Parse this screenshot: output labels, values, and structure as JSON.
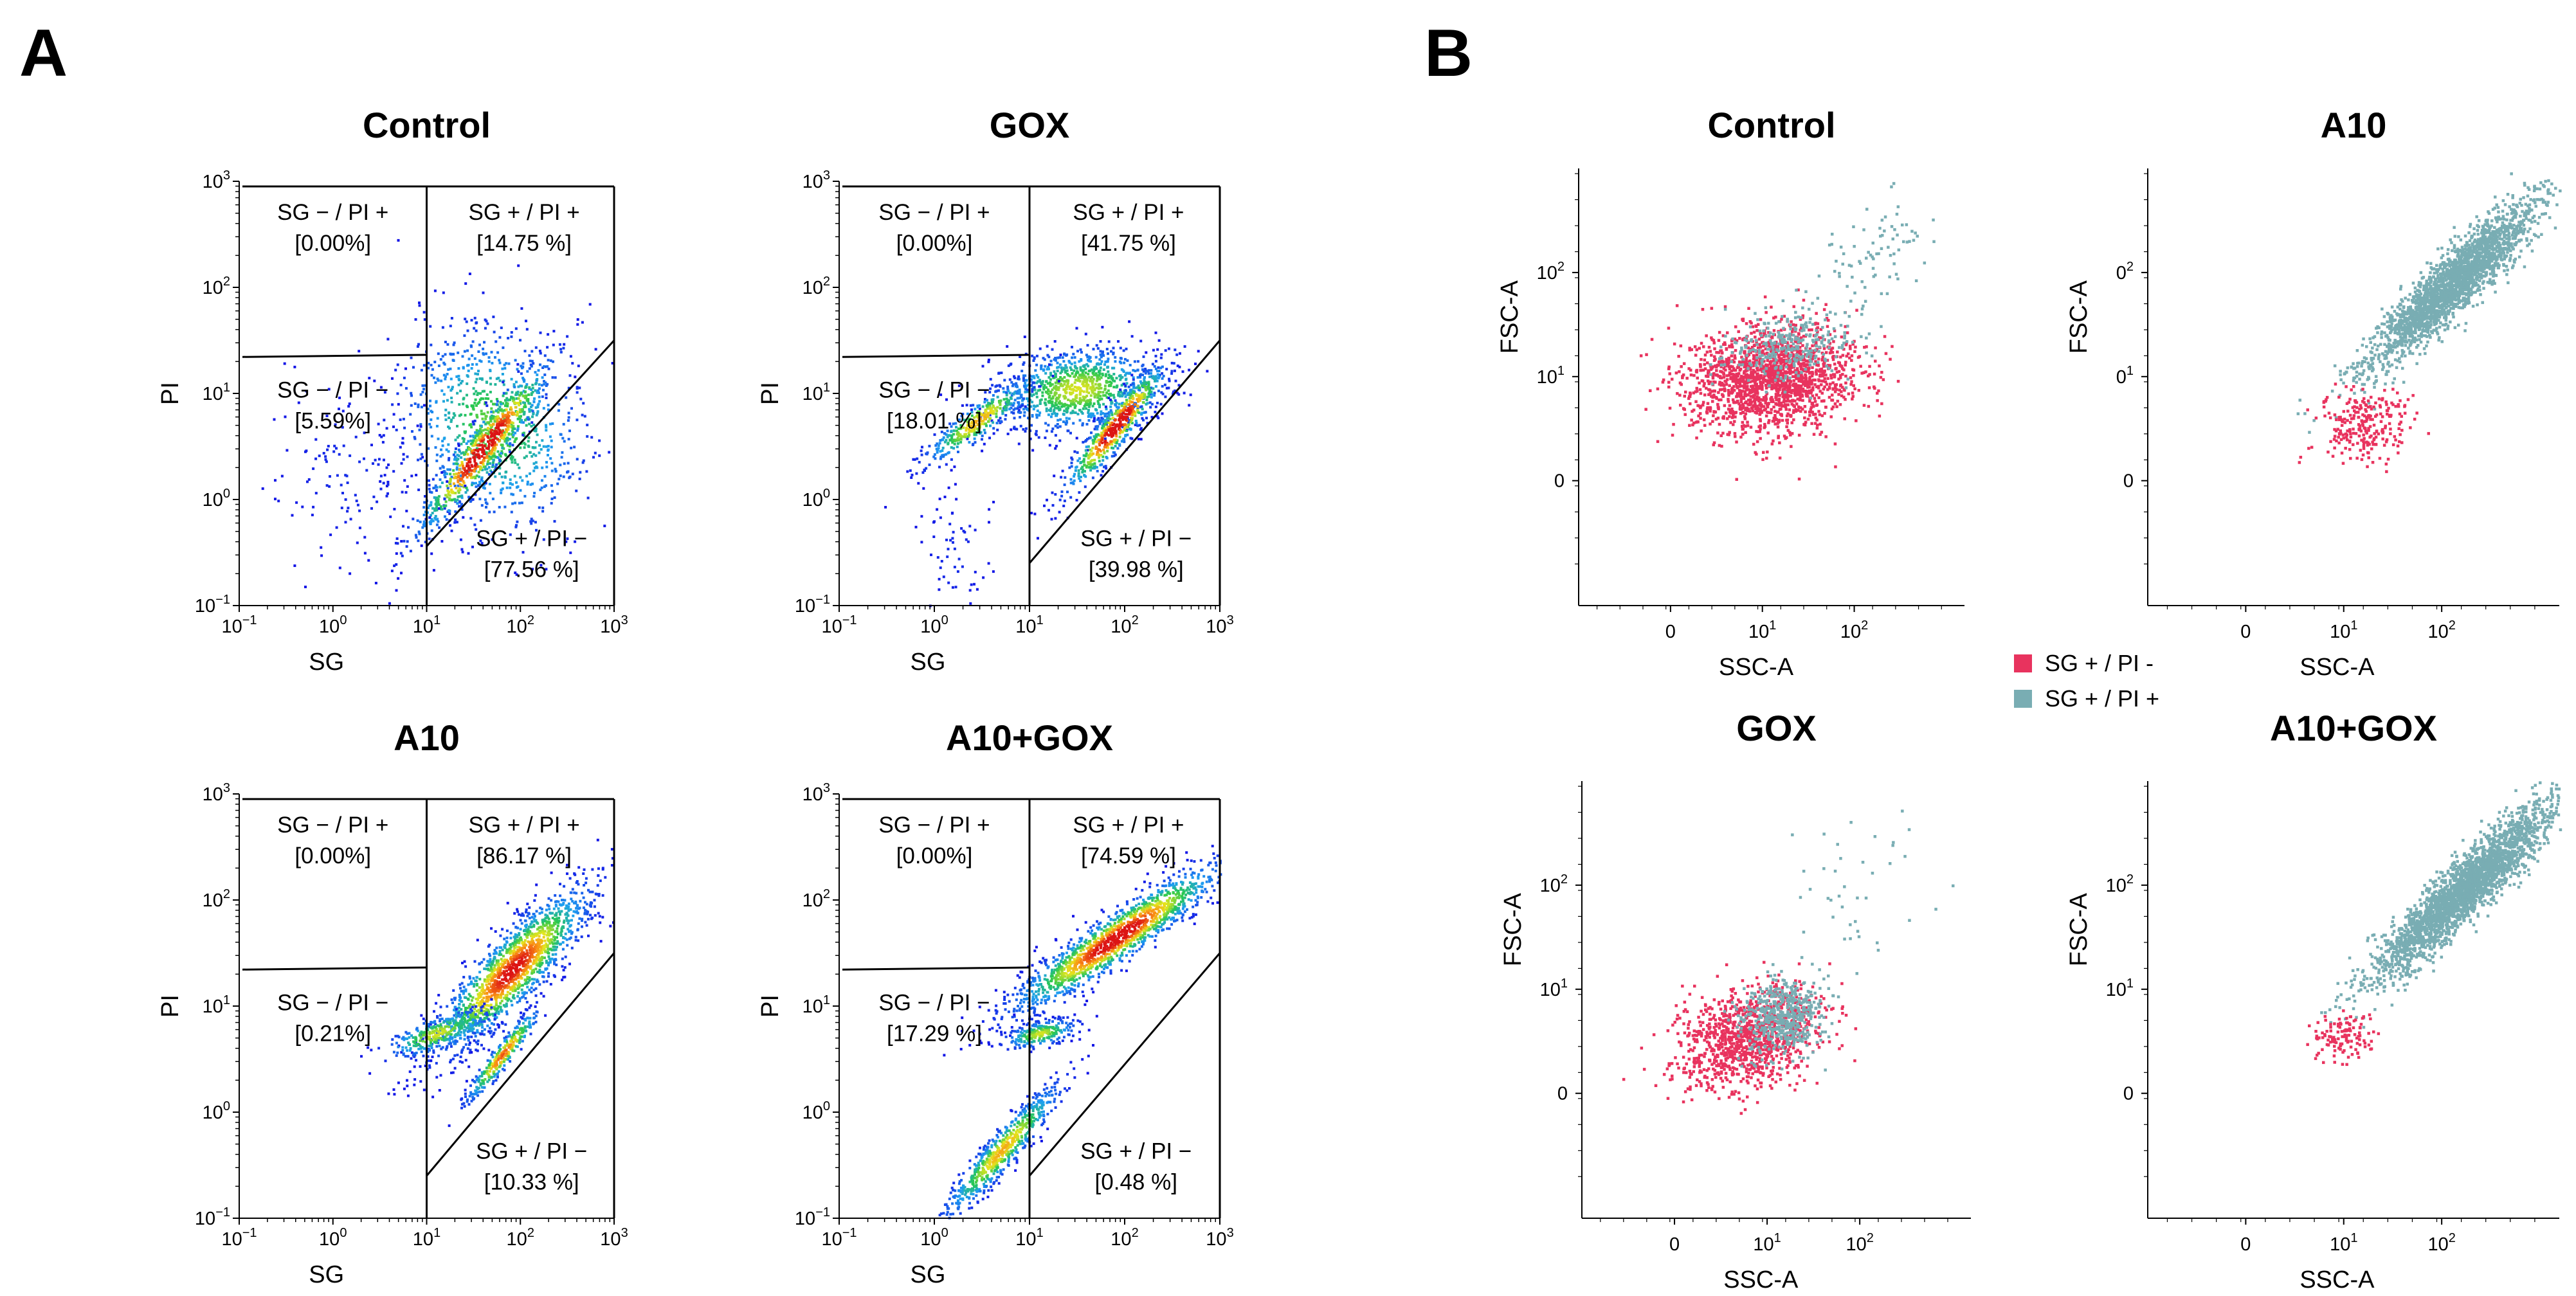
{
  "panels": {
    "A": "A",
    "B": "B"
  },
  "chart_data": [
    {
      "type": "scatter",
      "panel": "A",
      "title": "Control",
      "xlabel": "SG",
      "ylabel": "PI",
      "xticks": [
        "10−1",
        "100",
        "101",
        "102",
        "103"
      ],
      "yticks": [
        "10−1",
        "100",
        "101",
        "102",
        "103"
      ],
      "quadrants": [
        {
          "line1": "SG − / PI +",
          "line2": "[0.00%]"
        },
        {
          "line1": "SG + / PI +",
          "line2": "[14.75 %]"
        },
        {
          "line1": "SG − / PI −",
          "line2": "[5.59%]"
        },
        {
          "line1": "SG + / PI −",
          "line2": "[77.56 %]"
        }
      ]
    },
    {
      "type": "scatter",
      "panel": "A",
      "title": "GOX",
      "xlabel": "SG",
      "ylabel": "PI",
      "xticks": [
        "10−1",
        "100",
        "101",
        "102",
        "103"
      ],
      "yticks": [
        "10−1",
        "100",
        "101",
        "102",
        "103"
      ],
      "quadrants": [
        {
          "line1": "SG − / PI +",
          "line2": "[0.00%]"
        },
        {
          "line1": "SG + / PI +",
          "line2": "[41.75 %]"
        },
        {
          "line1": "SG − / PI −",
          "line2": "[18.01 %]"
        },
        {
          "line1": "SG + / PI −",
          "line2": "[39.98 %]"
        }
      ]
    },
    {
      "type": "scatter",
      "panel": "A",
      "title": "A10",
      "xlabel": "SG",
      "ylabel": "PI",
      "xticks": [
        "10−1",
        "100",
        "101",
        "102",
        "103"
      ],
      "yticks": [
        "10−1",
        "100",
        "101",
        "102",
        "103"
      ],
      "quadrants": [
        {
          "line1": "SG − / PI +",
          "line2": "[0.00%]"
        },
        {
          "line1": "SG + / PI +",
          "line2": "[86.17 %]"
        },
        {
          "line1": "SG − / PI −",
          "line2": "[0.21%]"
        },
        {
          "line1": "SG + / PI −",
          "line2": "[10.33 %]"
        }
      ]
    },
    {
      "type": "scatter",
      "panel": "A",
      "title": "A10+GOX",
      "xlabel": "SG",
      "ylabel": "PI",
      "xticks": [
        "10−1",
        "100",
        "101",
        "102",
        "103"
      ],
      "yticks": [
        "10−1",
        "100",
        "101",
        "102",
        "103"
      ],
      "quadrants": [
        {
          "line1": "SG − / PI +",
          "line2": "[0.00%]"
        },
        {
          "line1": "SG + / PI +",
          "line2": "[74.59 %]"
        },
        {
          "line1": "SG − / PI −",
          "line2": "[17.29 %]"
        },
        {
          "line1": "SG + / PI −",
          "line2": "[0.48 %]"
        }
      ]
    },
    {
      "type": "scatter",
      "panel": "B",
      "title": "Control",
      "xlabel": "SSC-A",
      "ylabel": "FSC-A",
      "xticks": [
        "0",
        "101",
        "102"
      ],
      "yticks": [
        "0",
        "101",
        "102"
      ]
    },
    {
      "type": "scatter",
      "panel": "B",
      "title": "A10",
      "xlabel": "SSC-A",
      "ylabel": "FSC-A",
      "xticks": [
        "0",
        "101",
        "102"
      ],
      "yticks": [
        "0",
        "01",
        "02"
      ]
    },
    {
      "type": "scatter",
      "panel": "B",
      "title": "GOX",
      "xlabel": "SSC-A",
      "ylabel": "FSC-A",
      "xticks": [
        "0",
        "101",
        "102"
      ],
      "yticks": [
        "0",
        "101",
        "102"
      ]
    },
    {
      "type": "scatter",
      "panel": "B",
      "title": "A10+GOX",
      "xlabel": "SSC-A",
      "ylabel": "FSC-A",
      "xticks": [
        "0",
        "101",
        "102"
      ],
      "yticks": [
        "0",
        "101",
        "102"
      ]
    }
  ],
  "legend": {
    "items": [
      {
        "label": "SG + / PI -",
        "color": "#e8335e"
      },
      {
        "label": "SG + / PI +",
        "color": "#79adb3"
      }
    ]
  }
}
